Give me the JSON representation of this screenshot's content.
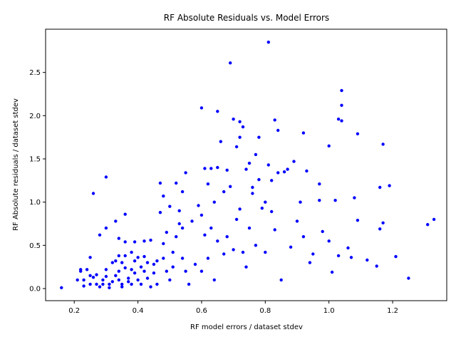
{
  "chart_data": {
    "type": "scatter",
    "title": "RF Absolute Residuals vs. Model Errors",
    "xlabel": "RF model errors / dataset stdev",
    "ylabel": "RF Absolute residuals / dataset stdev",
    "xlim": [
      0.11,
      1.37
    ],
    "ylim": [
      -0.14,
      3.0
    ],
    "xticks": [
      "0.2",
      "0.4",
      "0.6",
      "0.8",
      "1.0",
      "1.2"
    ],
    "xtick_values": [
      0.2,
      0.4,
      0.6,
      0.8,
      1.0,
      1.2
    ],
    "yticks": [
      "0.0",
      "0.5",
      "1.0",
      "1.5",
      "2.0",
      "2.5"
    ],
    "ytick_values": [
      0.0,
      0.5,
      1.0,
      1.5,
      2.0,
      2.5
    ],
    "grid": false,
    "legend": "none",
    "marker_color": "#0000ff",
    "points": [
      [
        0.16,
        0.01
      ],
      [
        0.21,
        0.1
      ],
      [
        0.22,
        0.2
      ],
      [
        0.22,
        0.22
      ],
      [
        0.23,
        0.1
      ],
      [
        0.23,
        0.03
      ],
      [
        0.24,
        0.22
      ],
      [
        0.25,
        0.36
      ],
      [
        0.25,
        0.15
      ],
      [
        0.25,
        0.05
      ],
      [
        0.26,
        0.13
      ],
      [
        0.26,
        1.1
      ],
      [
        0.27,
        0.05
      ],
      [
        0.27,
        0.16
      ],
      [
        0.28,
        0.02
      ],
      [
        0.28,
        0.62
      ],
      [
        0.29,
        0.1
      ],
      [
        0.29,
        0.05
      ],
      [
        0.3,
        1.29
      ],
      [
        0.3,
        0.7
      ],
      [
        0.3,
        0.22
      ],
      [
        0.3,
        0.14
      ],
      [
        0.31,
        0.05
      ],
      [
        0.31,
        0.01
      ],
      [
        0.32,
        0.3
      ],
      [
        0.32,
        0.08
      ],
      [
        0.33,
        0.78
      ],
      [
        0.33,
        0.32
      ],
      [
        0.33,
        0.15
      ],
      [
        0.34,
        0.58
      ],
      [
        0.34,
        0.38
      ],
      [
        0.34,
        0.2
      ],
      [
        0.34,
        0.1
      ],
      [
        0.35,
        0.3
      ],
      [
        0.35,
        0.05
      ],
      [
        0.35,
        0.02
      ],
      [
        0.36,
        0.86
      ],
      [
        0.36,
        0.54
      ],
      [
        0.36,
        0.38
      ],
      [
        0.36,
        0.24
      ],
      [
        0.37,
        0.12
      ],
      [
        0.37,
        0.08
      ],
      [
        0.38,
        0.42
      ],
      [
        0.38,
        0.22
      ],
      [
        0.38,
        0.05
      ],
      [
        0.39,
        0.54
      ],
      [
        0.39,
        0.32
      ],
      [
        0.39,
        0.18
      ],
      [
        0.4,
        0.1
      ],
      [
        0.4,
        0.36
      ],
      [
        0.41,
        0.25
      ],
      [
        0.41,
        0.05
      ],
      [
        0.42,
        0.55
      ],
      [
        0.42,
        0.37
      ],
      [
        0.42,
        0.2
      ],
      [
        0.43,
        0.3
      ],
      [
        0.43,
        0.12
      ],
      [
        0.44,
        0.02
      ],
      [
        0.44,
        0.56
      ],
      [
        0.45,
        0.28
      ],
      [
        0.45,
        0.18
      ],
      [
        0.46,
        0.05
      ],
      [
        0.46,
        0.32
      ],
      [
        0.47,
        1.22
      ],
      [
        0.47,
        0.88
      ],
      [
        0.48,
        1.07
      ],
      [
        0.48,
        0.52
      ],
      [
        0.48,
        0.35
      ],
      [
        0.49,
        0.65
      ],
      [
        0.49,
        0.2
      ],
      [
        0.5,
        0.95
      ],
      [
        0.5,
        0.1
      ],
      [
        0.51,
        0.42
      ],
      [
        0.51,
        0.25
      ],
      [
        0.52,
        1.22
      ],
      [
        0.52,
        0.6
      ],
      [
        0.53,
        0.9
      ],
      [
        0.53,
        0.75
      ],
      [
        0.54,
        1.12
      ],
      [
        0.54,
        0.7
      ],
      [
        0.54,
        0.35
      ],
      [
        0.55,
        1.34
      ],
      [
        0.55,
        0.2
      ],
      [
        0.56,
        0.05
      ],
      [
        0.57,
        0.78
      ],
      [
        0.58,
        0.28
      ],
      [
        0.59,
        0.96
      ],
      [
        0.6,
        2.09
      ],
      [
        0.6,
        0.85
      ],
      [
        0.6,
        0.2
      ],
      [
        0.61,
        1.39
      ],
      [
        0.61,
        0.62
      ],
      [
        0.62,
        1.21
      ],
      [
        0.62,
        0.35
      ],
      [
        0.63,
        1.39
      ],
      [
        0.63,
        0.7
      ],
      [
        0.64,
        1.0
      ],
      [
        0.64,
        0.1
      ],
      [
        0.65,
        2.05
      ],
      [
        0.65,
        1.4
      ],
      [
        0.65,
        0.55
      ],
      [
        0.66,
        1.7
      ],
      [
        0.67,
        1.12
      ],
      [
        0.67,
        0.4
      ],
      [
        0.68,
        1.37
      ],
      [
        0.68,
        0.6
      ],
      [
        0.69,
        2.61
      ],
      [
        0.69,
        1.18
      ],
      [
        0.7,
        1.96
      ],
      [
        0.7,
        0.45
      ],
      [
        0.71,
        1.64
      ],
      [
        0.71,
        0.8
      ],
      [
        0.72,
        1.93
      ],
      [
        0.72,
        1.75
      ],
      [
        0.72,
        0.92
      ],
      [
        0.73,
        1.87
      ],
      [
        0.73,
        0.42
      ],
      [
        0.74,
        1.38
      ],
      [
        0.74,
        0.25
      ],
      [
        0.75,
        1.45
      ],
      [
        0.75,
        0.7
      ],
      [
        0.76,
        1.17
      ],
      [
        0.76,
        1.1
      ],
      [
        0.77,
        1.55
      ],
      [
        0.77,
        0.5
      ],
      [
        0.78,
        1.75
      ],
      [
        0.78,
        1.26
      ],
      [
        0.79,
        0.93
      ],
      [
        0.8,
        1.0
      ],
      [
        0.8,
        0.42
      ],
      [
        0.81,
        2.85
      ],
      [
        0.81,
        1.43
      ],
      [
        0.82,
        1.25
      ],
      [
        0.82,
        0.89
      ],
      [
        0.83,
        1.95
      ],
      [
        0.83,
        0.68
      ],
      [
        0.84,
        1.83
      ],
      [
        0.84,
        1.34
      ],
      [
        0.85,
        0.1
      ],
      [
        0.86,
        1.35
      ],
      [
        0.87,
        1.38
      ],
      [
        0.88,
        0.48
      ],
      [
        0.89,
        1.47
      ],
      [
        0.9,
        0.78
      ],
      [
        0.91,
        1.0
      ],
      [
        0.92,
        1.8
      ],
      [
        0.92,
        0.6
      ],
      [
        0.93,
        1.36
      ],
      [
        0.94,
        0.3
      ],
      [
        0.95,
        0.4
      ],
      [
        0.97,
        1.21
      ],
      [
        0.97,
        1.02
      ],
      [
        0.98,
        0.66
      ],
      [
        1.0,
        1.65
      ],
      [
        1.0,
        0.55
      ],
      [
        1.01,
        0.19
      ],
      [
        1.02,
        1.02
      ],
      [
        1.03,
        1.96
      ],
      [
        1.03,
        0.38
      ],
      [
        1.04,
        2.29
      ],
      [
        1.04,
        2.12
      ],
      [
        1.04,
        1.94
      ],
      [
        1.06,
        0.47
      ],
      [
        1.07,
        0.36
      ],
      [
        1.08,
        1.05
      ],
      [
        1.09,
        1.79
      ],
      [
        1.09,
        0.79
      ],
      [
        1.12,
        0.33
      ],
      [
        1.15,
        0.26
      ],
      [
        1.16,
        1.17
      ],
      [
        1.16,
        0.69
      ],
      [
        1.17,
        1.67
      ],
      [
        1.17,
        0.76
      ],
      [
        1.19,
        1.19
      ],
      [
        1.21,
        0.37
      ],
      [
        1.25,
        0.12
      ],
      [
        1.31,
        0.74
      ],
      [
        1.33,
        0.8
      ]
    ]
  }
}
